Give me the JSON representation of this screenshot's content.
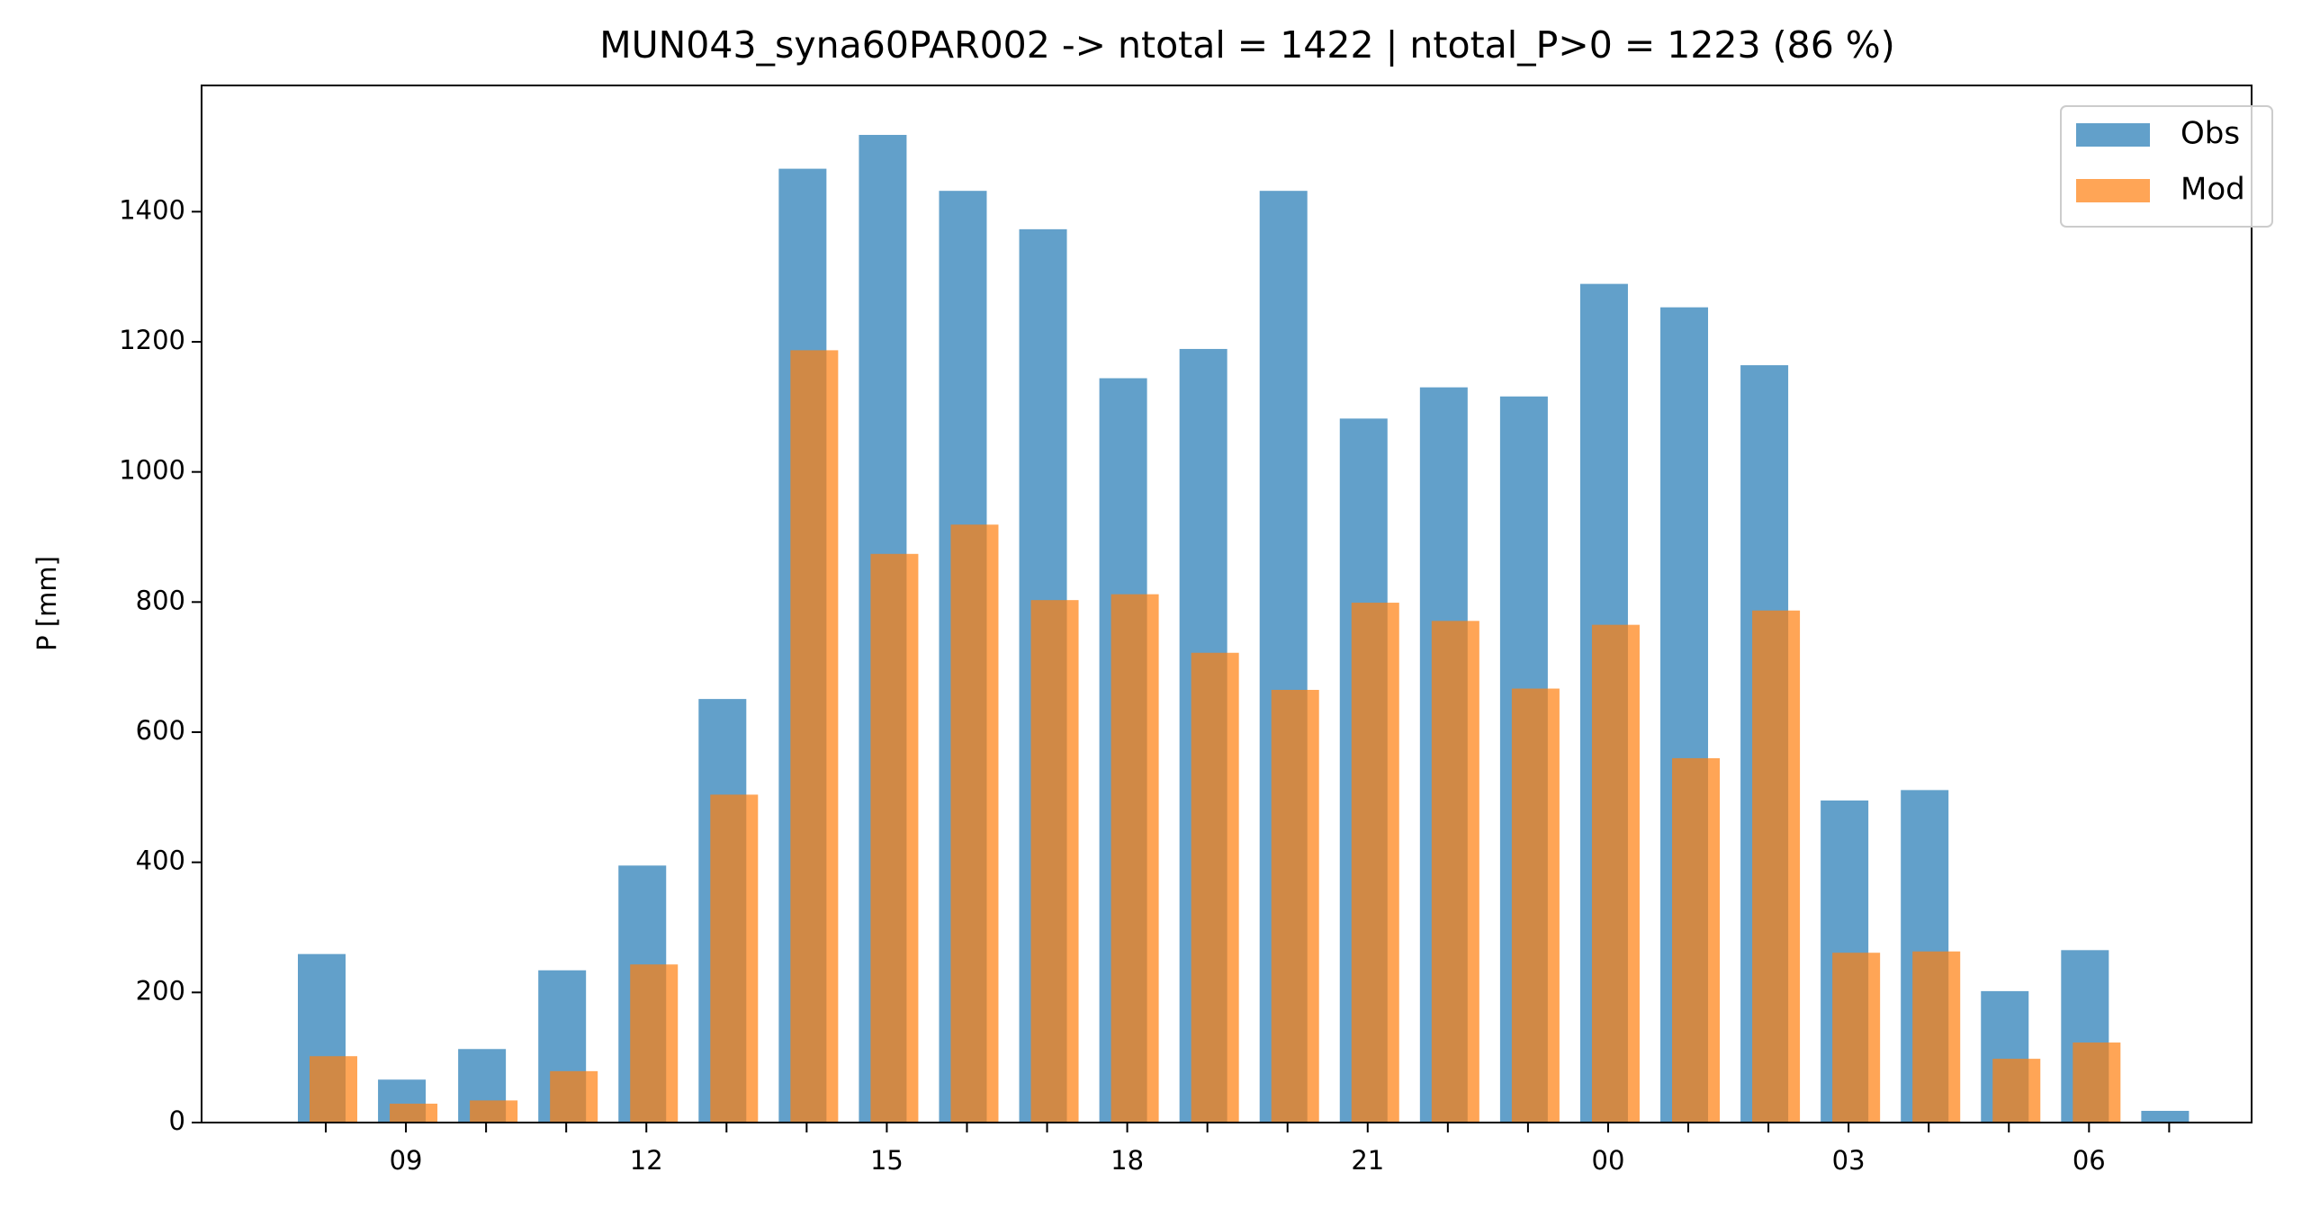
{
  "chart_data": {
    "type": "bar",
    "title": "MUN043_syna60PAR002 -> ntotal = 1422 | ntotal_P>0 = 1223 (86 %)",
    "y_label": "P [mm]",
    "categories": [
      null,
      "09",
      null,
      null,
      "12",
      null,
      null,
      "15",
      null,
      null,
      "18",
      null,
      null,
      "21",
      null,
      null,
      "00",
      null,
      null,
      "03",
      null,
      null,
      "06",
      null
    ],
    "series": [
      {
        "name": "Obs",
        "color": "#1f77b4",
        "values": [
          259,
          66,
          113,
          234,
          395,
          651,
          1466,
          1518,
          1432,
          1373,
          1144,
          1189,
          1432,
          1082,
          1130,
          1116,
          1289,
          1253,
          1164,
          495,
          511,
          202,
          265,
          18
        ]
      },
      {
        "name": "Mod",
        "color": "#ff7f0e",
        "values": [
          102,
          29,
          34,
          79,
          243,
          504,
          1187,
          874,
          919,
          803,
          812,
          722,
          665,
          799,
          771,
          667,
          765,
          560,
          787,
          261,
          263,
          98,
          123,
          null
        ]
      }
    ],
    "ylim": [
      0,
      1594
    ],
    "yticks": [
      0,
      200,
      400,
      600,
      800,
      1000,
      1200,
      1400
    ],
    "legend": "upper right"
  }
}
